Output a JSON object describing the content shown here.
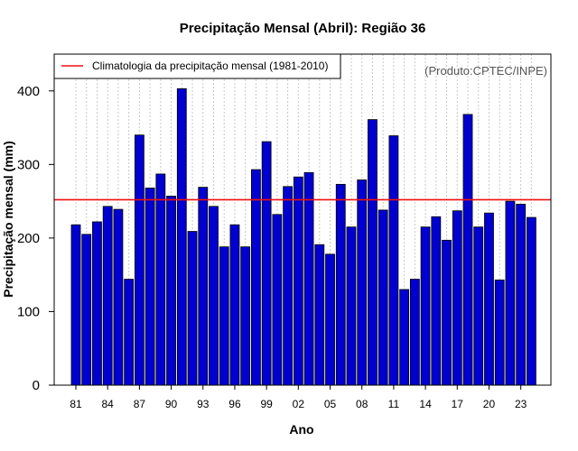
{
  "colors": {
    "bar_fill": "#0000d0",
    "bar_stroke": "#000000",
    "clim_line": "#ee1111",
    "grid": "#c8c8c8",
    "credit_text": "#555555"
  },
  "chart_data": {
    "type": "bar",
    "title": "Precipitação Mensal (Abril): Região 36",
    "xlabel": "Ano",
    "ylabel": "Precipitação mensal (mm)",
    "ylim": [
      0,
      450
    ],
    "yticks": [
      0,
      100,
      200,
      300,
      400
    ],
    "credit": "(Produto:CPTEC/INPE)",
    "legend": {
      "position": "top-left",
      "entries": [
        "Climatologia da precipitação mensal (1981-2010)"
      ]
    },
    "climatology": 252,
    "categories": [
      "81",
      "82",
      "83",
      "84",
      "85",
      "86",
      "87",
      "88",
      "89",
      "90",
      "91",
      "92",
      "93",
      "94",
      "95",
      "96",
      "97",
      "98",
      "99",
      "00",
      "01",
      "02",
      "03",
      "04",
      "05",
      "06",
      "07",
      "08",
      "09",
      "10",
      "11",
      "12",
      "13",
      "14",
      "15",
      "16",
      "17",
      "18",
      "19",
      "20",
      "21",
      "22",
      "23",
      "24"
    ],
    "xtick_labels": [
      "81",
      "84",
      "87",
      "90",
      "93",
      "96",
      "99",
      "02",
      "05",
      "08",
      "11",
      "14",
      "17",
      "20",
      "23"
    ],
    "values": [
      218,
      205,
      222,
      243,
      239,
      144,
      340,
      268,
      287,
      257,
      403,
      209,
      269,
      243,
      188,
      218,
      188,
      293,
      331,
      232,
      270,
      283,
      289,
      191,
      178,
      273,
      215,
      279,
      361,
      238,
      339,
      130,
      144,
      215,
      229,
      197,
      237,
      368,
      215,
      234,
      143,
      250,
      246,
      228
    ]
  }
}
